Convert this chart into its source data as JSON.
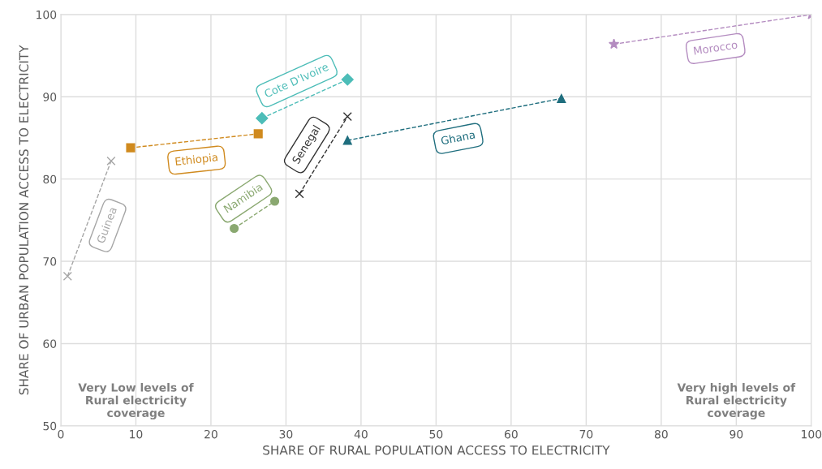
{
  "chart_data": {
    "type": "line",
    "xlabel": "SHARE OF RURAL POPULATION ACCESS TO ELECTRICITY",
    "ylabel": "SHARE OF URBAN POPULATION ACCESS TO ELECTRICITY",
    "xlim": [
      0,
      100
    ],
    "xticks": [
      0,
      10,
      20,
      30,
      40,
      50,
      60,
      70,
      80,
      90,
      100
    ],
    "ylim": [
      50,
      100
    ],
    "yticks": [
      50,
      60,
      70,
      80,
      90,
      100
    ],
    "grid": true,
    "line_style": "dashed",
    "series": [
      {
        "name": "Guinea",
        "color": "#a6a6a6",
        "marker": "cross",
        "x": [
          0.9,
          6.7
        ],
        "values": [
          68.2,
          82.2
        ]
      },
      {
        "name": "Ethiopia",
        "color": "#d08a1e",
        "marker": "square",
        "x": [
          9.3,
          26.3
        ],
        "values": [
          83.8,
          85.5
        ]
      },
      {
        "name": "Namibia",
        "color": "#8aa870",
        "marker": "circle",
        "x": [
          23.1,
          28.5
        ],
        "values": [
          74.0,
          77.3
        ]
      },
      {
        "name": "Cote D'Ivoire",
        "color": "#4dbdb8",
        "marker": "diamond",
        "x": [
          26.8,
          38.2
        ],
        "values": [
          87.4,
          92.1
        ]
      },
      {
        "name": "Senegal",
        "color": "#333333",
        "marker": "cross",
        "x": [
          31.8,
          38.2
        ],
        "values": [
          78.2,
          87.6
        ]
      },
      {
        "name": "Ghana",
        "color": "#1f6e7e",
        "marker": "triangle",
        "x": [
          38.2,
          66.7
        ],
        "values": [
          84.7,
          89.8
        ]
      },
      {
        "name": "Morocco",
        "color": "#b48cc0",
        "marker": "star",
        "x": [
          73.7,
          100
        ],
        "values": [
          96.4,
          100
        ]
      }
    ],
    "annotations": [
      "Very Low levels of\nRural electricity\ncoverage",
      "Very high levels of\nRural electricity\ncoverage"
    ]
  }
}
